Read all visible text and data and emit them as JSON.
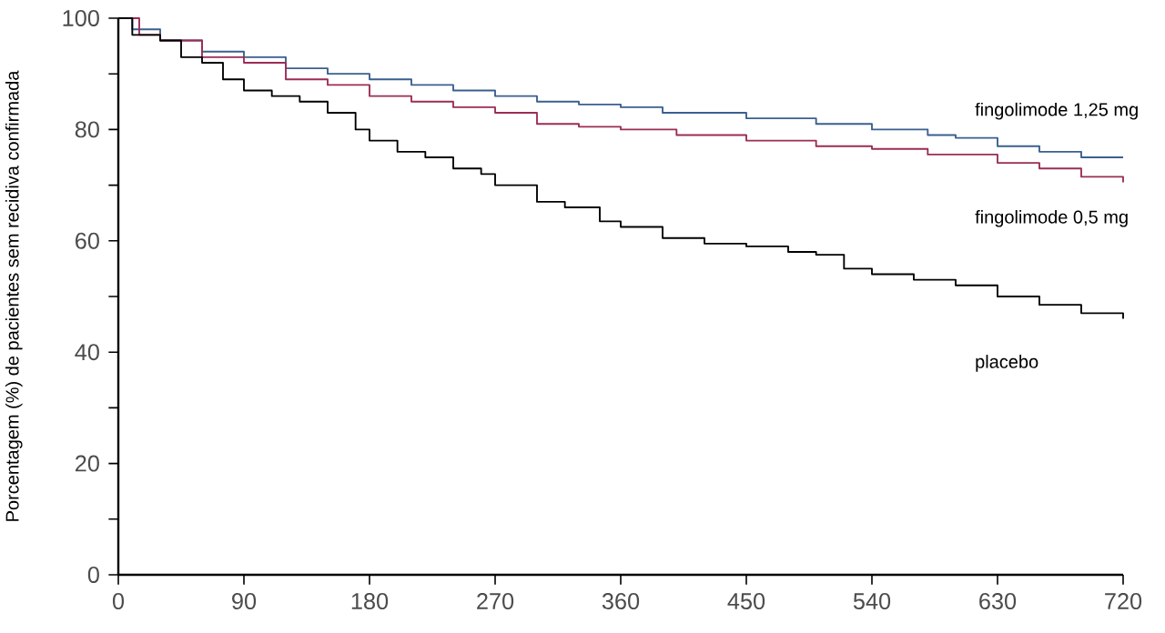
{
  "chart_data": {
    "type": "step",
    "ylabel": "Porcentagem (%) de pacientes sem recidiva confirmada",
    "xlim": [
      0,
      720
    ],
    "xticks": [
      0,
      90,
      180,
      270,
      360,
      450,
      540,
      630,
      720
    ],
    "ylim": [
      0,
      100
    ],
    "yticks": [
      0,
      {
        "value": 10,
        "label": null
      },
      20,
      {
        "value": 30,
        "label": null
      },
      40,
      {
        "value": 50,
        "label": null
      },
      60,
      {
        "value": 70,
        "label": null
      },
      80,
      {
        "value": 90,
        "label": null
      },
      100
    ],
    "grid": false,
    "legend": false,
    "series": [
      {
        "name": "fingolimode 1,25 mg",
        "color": "#3a5f8f",
        "x": [
          0,
          10,
          30,
          60,
          90,
          120,
          150,
          180,
          210,
          240,
          270,
          300,
          330,
          360,
          390,
          450,
          500,
          540,
          580,
          600,
          630,
          660,
          690,
          720
        ],
        "values": [
          100,
          98,
          96,
          94,
          93,
          91,
          90,
          89,
          88,
          87,
          86,
          85,
          84.5,
          84,
          83,
          82,
          81,
          80,
          79,
          78.5,
          77,
          76,
          75,
          75
        ]
      },
      {
        "name": "fingolimode 0,5 mg",
        "color": "#9b2d55",
        "x": [
          0,
          15,
          30,
          60,
          90,
          120,
          150,
          180,
          210,
          240,
          270,
          300,
          330,
          360,
          400,
          450,
          500,
          540,
          580,
          630,
          660,
          690,
          720
        ],
        "values": [
          100,
          97,
          96,
          93,
          92,
          89,
          88,
          86,
          85,
          84,
          83,
          81,
          80.5,
          80,
          79,
          78,
          77,
          76.5,
          75.5,
          74,
          73,
          71.5,
          70.5
        ]
      },
      {
        "name": "placebo",
        "color": "#000000",
        "x": [
          0,
          10,
          30,
          45,
          60,
          75,
          90,
          110,
          130,
          150,
          170,
          180,
          200,
          220,
          240,
          260,
          270,
          300,
          320,
          345,
          360,
          390,
          420,
          450,
          480,
          500,
          520,
          540,
          570,
          600,
          630,
          660,
          690,
          720
        ],
        "values": [
          100,
          97,
          96,
          93,
          92,
          89,
          87,
          86,
          85,
          83,
          80,
          78,
          76,
          75,
          73,
          72,
          70,
          67,
          66,
          63.5,
          62.5,
          60.5,
          59.5,
          59,
          58,
          57.5,
          55,
          54,
          53,
          52,
          50,
          48.5,
          47,
          46
        ]
      }
    ]
  }
}
